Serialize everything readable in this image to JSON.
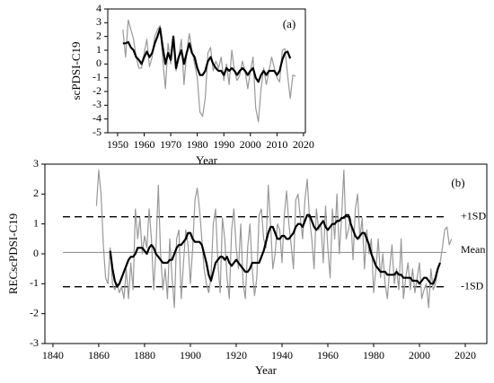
{
  "chart_data": [
    {
      "type": "line",
      "ylabel": "scPDSI-C19",
      "xlabel": "Year",
      "annotation": "(a)",
      "xlim": [
        1946.3,
        2020.7
      ],
      "ylim": [
        -5,
        4
      ],
      "xticks": [
        1950,
        1960,
        1970,
        1980,
        1990,
        2000,
        2010,
        2020
      ],
      "yticks": [
        -5,
        -4,
        -3,
        -2,
        -1,
        0,
        1,
        2,
        3,
        4
      ],
      "x": [
        1952,
        1953,
        1954,
        1955,
        1956,
        1957,
        1958,
        1959,
        1960,
        1961,
        1962,
        1963,
        1964,
        1965,
        1966,
        1967,
        1968,
        1969,
        1970,
        1971,
        1972,
        1973,
        1974,
        1975,
        1976,
        1977,
        1978,
        1979,
        1980,
        1981,
        1982,
        1983,
        1984,
        1985,
        1986,
        1987,
        1988,
        1989,
        1990,
        1991,
        1992,
        1993,
        1994,
        1995,
        1996,
        1997,
        1998,
        1999,
        2000,
        2001,
        2002,
        2003,
        2004,
        2005,
        2006,
        2007,
        2008,
        2009,
        2010,
        2011,
        2012,
        2013,
        2014,
        2015,
        2016,
        2017
      ],
      "series": [
        {
          "color": "#999999",
          "width": 1.2,
          "values": [
            2.5,
            0.5,
            3.2,
            2.5,
            1.8,
            0.5,
            -0.3,
            -0.3,
            0.8,
            1.8,
            -0.2,
            0.5,
            2.0,
            2.5,
            2.8,
            0.3,
            -1.8,
            1.5,
            0.0,
            2.0,
            -0.5,
            0.5,
            1.8,
            -1.5,
            0.8,
            2.2,
            1.0,
            0.0,
            -1.0,
            -3.5,
            -3.8,
            -2.5,
            0.8,
            1.2,
            -0.5,
            0.2,
            -0.3,
            0.5,
            -1.2,
            0.0,
            -1.5,
            1.0,
            -0.5,
            -1.2,
            -0.8,
            0.2,
            -0.5,
            -1.8,
            -0.5,
            0.5,
            -3.2,
            -4.2,
            -1.8,
            -0.3,
            -1.5,
            -0.5,
            0.5,
            -0.3,
            -1.0,
            -1.3,
            1.0,
            1.1,
            -0.8,
            -2.5,
            -0.8,
            -0.9
          ]
        },
        {
          "color": "#000000",
          "width": 2.2,
          "values": [
            1.5,
            1.5,
            1.6,
            1.2,
            1.0,
            0.5,
            0.3,
            0.0,
            0.5,
            0.9,
            0.5,
            0.8,
            1.5,
            2.0,
            2.6,
            1.2,
            0.0,
            0.8,
            0.3,
            2.0,
            -0.3,
            0.5,
            1.0,
            0.0,
            0.8,
            1.5,
            0.8,
            0.5,
            -0.3,
            -0.8,
            -0.8,
            -0.5,
            0.2,
            0.5,
            0.0,
            -0.3,
            -0.5,
            -0.5,
            -0.8,
            -0.3,
            -0.5,
            -0.3,
            -0.5,
            -0.8,
            -0.5,
            -0.3,
            -0.5,
            -0.8,
            -0.5,
            -0.3,
            -1.0,
            -1.3,
            -0.8,
            -0.5,
            -0.8,
            -0.5,
            -0.5,
            -0.5,
            -0.8,
            -0.5,
            0.3,
            0.8,
            0.9,
            0.4,
            null,
            null
          ]
        }
      ]
    },
    {
      "type": "line",
      "ylabel": "RECscPDSI-C19",
      "xlabel": "Year",
      "annotation": "(b)",
      "xlim": [
        1836.5,
        2029.4
      ],
      "ylim": [
        -3,
        3
      ],
      "xticks": [
        1840,
        1860,
        1880,
        1900,
        1920,
        1940,
        1960,
        1980,
        2000,
        2020
      ],
      "yticks": [
        -3,
        -2,
        -1,
        0,
        1,
        2,
        3
      ],
      "reference_lines": [
        {
          "label": "+1SD",
          "value": 1.24,
          "dashed": true
        },
        {
          "label": "Mean",
          "value": 0.05,
          "dashed": false
        },
        {
          "label": "-1SD",
          "value": -1.1,
          "dashed": true
        }
      ],
      "x": [
        1859,
        1860,
        1861,
        1862,
        1863,
        1864,
        1865,
        1866,
        1867,
        1868,
        1869,
        1870,
        1871,
        1872,
        1873,
        1874,
        1875,
        1876,
        1877,
        1878,
        1879,
        1880,
        1881,
        1882,
        1883,
        1884,
        1885,
        1886,
        1887,
        1888,
        1889,
        1890,
        1891,
        1892,
        1893,
        1894,
        1895,
        1896,
        1897,
        1898,
        1899,
        1900,
        1901,
        1902,
        1903,
        1904,
        1905,
        1906,
        1907,
        1908,
        1909,
        1910,
        1911,
        1912,
        1913,
        1914,
        1915,
        1916,
        1917,
        1918,
        1919,
        1920,
        1921,
        1922,
        1923,
        1924,
        1925,
        1926,
        1927,
        1928,
        1929,
        1930,
        1931,
        1932,
        1933,
        1934,
        1935,
        1936,
        1937,
        1938,
        1939,
        1940,
        1941,
        1942,
        1943,
        1944,
        1945,
        1946,
        1947,
        1948,
        1949,
        1950,
        1951,
        1952,
        1953,
        1954,
        1955,
        1956,
        1957,
        1958,
        1959,
        1960,
        1961,
        1962,
        1963,
        1964,
        1965,
        1966,
        1967,
        1968,
        1969,
        1970,
        1971,
        1972,
        1973,
        1974,
        1975,
        1976,
        1977,
        1978,
        1979,
        1980,
        1981,
        1982,
        1983,
        1984,
        1985,
        1986,
        1987,
        1988,
        1989,
        1990,
        1991,
        1992,
        1993,
        1994,
        1995,
        1996,
        1997,
        1998,
        1999,
        2000,
        2001,
        2002,
        2003,
        2004,
        2005,
        2006,
        2007,
        2008,
        2009,
        2010,
        2011,
        2012,
        2013,
        2014
      ],
      "series": [
        {
          "color": "#999999",
          "width": 1.2,
          "values": [
            1.6,
            2.8,
            2.0,
            0.3,
            -0.8,
            -1.0,
            0.2,
            -1.0,
            -1.2,
            -1.0,
            -1.3,
            -1.1,
            -1.5,
            -0.5,
            -1.5,
            -0.3,
            -1.2,
            1.5,
            0.5,
            1.2,
            0.0,
            0.6,
            0.2,
            1.5,
            0.5,
            -1.2,
            0.2,
            2.3,
            0.0,
            -1.2,
            -0.5,
            -1.5,
            0.5,
            -0.8,
            -1.8,
            0.5,
            0.8,
            -1.5,
            -0.3,
            0.8,
            0.3,
            -1.0,
            0.2,
            1.8,
            2.2,
            1.5,
            0.5,
            -0.5,
            -1.0,
            -1.3,
            -0.8,
            1.0,
            1.5,
            -0.3,
            -1.3,
            1.2,
            0.5,
            -0.8,
            -1.5,
            0.8,
            1.5,
            0.2,
            -0.5,
            1.0,
            -1.0,
            -1.5,
            0.2,
            1.0,
            -0.5,
            -1.4,
            -0.8,
            1.3,
            1.5,
            0.5,
            0.2,
            2.3,
            1.0,
            -0.5,
            0.0,
            1.0,
            0.8,
            -0.3,
            1.3,
            2.1,
            1.0,
            0.3,
            -0.5,
            1.8,
            2.0,
            1.2,
            0.5,
            1.8,
            2.5,
            1.2,
            0.5,
            -0.5,
            1.5,
            0.8,
            1.0,
            -0.3,
            1.6,
            0.2,
            -0.8,
            1.5,
            0.5,
            2.0,
            0.0,
            1.2,
            2.8,
            0.5,
            0.8,
            1.2,
            -0.2,
            1.5,
            2.0,
            0.5,
            1.2,
            -0.5,
            0.8,
            0.0,
            0.5,
            -1.3,
            -0.5,
            0.5,
            -0.8,
            0.0,
            -1.0,
            -1.5,
            -0.5,
            0.3,
            -1.0,
            -0.5,
            -1.2,
            0.5,
            -1.5,
            -0.8,
            -0.3,
            -1.2,
            -0.5,
            -1.3,
            -0.8,
            -0.3,
            -1.5,
            -1.2,
            -1.0,
            -1.8,
            -0.5,
            -1.2,
            -1.0,
            -0.5,
            -0.3,
            0.2,
            0.8,
            0.9,
            0.3,
            0.5
          ]
        },
        {
          "color": "#000000",
          "width": 2.2,
          "values": [
            null,
            null,
            null,
            null,
            null,
            null,
            0.1,
            -0.5,
            -0.9,
            -1.1,
            -1.0,
            -0.8,
            -0.6,
            -0.4,
            -0.2,
            -0.1,
            -0.1,
            0.0,
            0.2,
            0.2,
            0.2,
            0.1,
            0.0,
            0.2,
            0.3,
            0.2,
            0.0,
            -0.1,
            -0.2,
            -0.3,
            -0.3,
            -0.3,
            -0.2,
            -0.2,
            0.0,
            0.2,
            0.3,
            0.3,
            0.4,
            0.5,
            0.7,
            0.7,
            0.5,
            0.4,
            0.4,
            0.4,
            0.3,
            0.0,
            -0.3,
            -0.7,
            -0.9,
            -0.6,
            -0.3,
            -0.2,
            -0.1,
            -0.1,
            -0.2,
            -0.1,
            -0.3,
            -0.4,
            -0.3,
            -0.2,
            -0.3,
            -0.4,
            -0.5,
            -0.6,
            -0.6,
            -0.5,
            -0.3,
            -0.3,
            -0.3,
            -0.3,
            -0.1,
            0.1,
            0.4,
            0.7,
            0.9,
            0.9,
            0.7,
            0.5,
            0.5,
            0.6,
            0.6,
            0.5,
            0.5,
            0.6,
            0.7,
            0.9,
            1.0,
            1.0,
            0.9,
            1.1,
            1.3,
            1.3,
            1.1,
            0.9,
            0.8,
            0.9,
            1.0,
            1.1,
            0.9,
            0.8,
            0.9,
            1.0,
            1.0,
            1.1,
            1.1,
            1.2,
            1.2,
            1.3,
            1.3,
            1.0,
            0.8,
            0.6,
            0.5,
            0.6,
            0.7,
            0.7,
            0.5,
            0.3,
            0.0,
            -0.2,
            -0.4,
            -0.5,
            -0.6,
            -0.6,
            -0.6,
            -0.7,
            -0.7,
            -0.7,
            -0.7,
            -0.6,
            -0.7,
            -0.7,
            -0.8,
            -0.8,
            -0.8,
            -0.8,
            -0.9,
            -0.9,
            -0.9,
            -1.0,
            -0.9,
            -0.8,
            -0.8,
            -0.9,
            -1.0,
            -1.0,
            -0.8,
            -0.5,
            -0.3,
            null,
            null,
            null,
            null,
            null
          ]
        }
      ]
    }
  ]
}
